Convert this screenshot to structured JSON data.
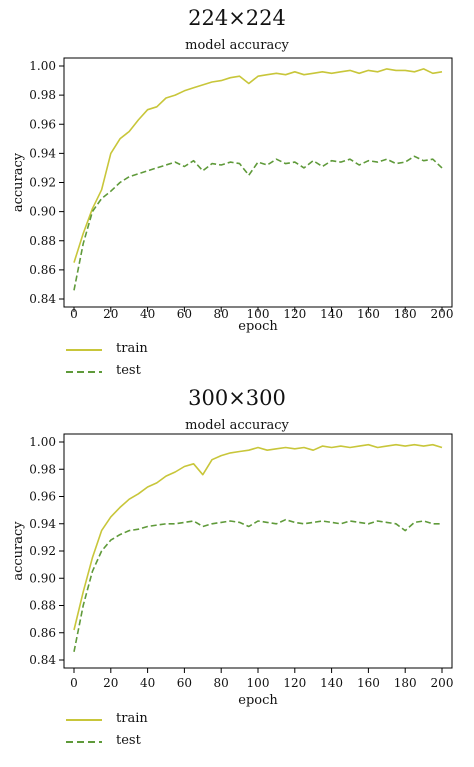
{
  "colors": {
    "train": "#c8c63a",
    "test": "#5f9a3a",
    "axis": "#000000"
  },
  "chart_data": [
    {
      "type": "line",
      "heading": "224×224",
      "title": "model accuracy",
      "xlabel": "epoch",
      "ylabel": "accuracy",
      "xlim": [
        0,
        200
      ],
      "ylim": [
        0.84,
        1.0
      ],
      "xticks": [
        "0",
        "20",
        "40",
        "60",
        "80",
        "100",
        "120",
        "140",
        "160",
        "180",
        "200"
      ],
      "yticks": [
        "0.84",
        "0.86",
        "0.88",
        "0.90",
        "0.92",
        "0.94",
        "0.96",
        "0.98",
        "1.00"
      ],
      "legend": "bottom-left, below plot",
      "x": [
        0,
        5,
        10,
        15,
        20,
        25,
        30,
        35,
        40,
        45,
        50,
        55,
        60,
        65,
        70,
        75,
        80,
        85,
        90,
        95,
        100,
        105,
        110,
        115,
        120,
        125,
        130,
        135,
        140,
        145,
        150,
        155,
        160,
        165,
        170,
        175,
        180,
        185,
        190,
        195,
        200
      ],
      "series": [
        {
          "name": "train",
          "values": [
            0.865,
            0.885,
            0.902,
            0.915,
            0.94,
            0.95,
            0.955,
            0.963,
            0.97,
            0.972,
            0.978,
            0.98,
            0.983,
            0.985,
            0.987,
            0.989,
            0.99,
            0.992,
            0.993,
            0.988,
            0.993,
            0.994,
            0.995,
            0.994,
            0.996,
            0.994,
            0.995,
            0.996,
            0.995,
            0.996,
            0.997,
            0.995,
            0.997,
            0.996,
            0.998,
            0.997,
            0.997,
            0.996,
            0.998,
            0.995,
            0.996
          ]
        },
        {
          "name": "test",
          "values": [
            0.846,
            0.878,
            0.9,
            0.909,
            0.914,
            0.92,
            0.924,
            0.926,
            0.928,
            0.93,
            0.932,
            0.934,
            0.931,
            0.935,
            0.928,
            0.933,
            0.932,
            0.934,
            0.933,
            0.925,
            0.934,
            0.932,
            0.936,
            0.933,
            0.934,
            0.93,
            0.935,
            0.931,
            0.935,
            0.934,
            0.936,
            0.932,
            0.935,
            0.934,
            0.936,
            0.933,
            0.934,
            0.938,
            0.935,
            0.936,
            0.93
          ]
        }
      ]
    },
    {
      "type": "line",
      "heading": "300×300",
      "title": "model accuracy",
      "xlabel": "epoch",
      "ylabel": "accuracy",
      "xlim": [
        0,
        200
      ],
      "ylim": [
        0.84,
        1.0
      ],
      "xticks": [
        "0",
        "20",
        "40",
        "60",
        "80",
        "100",
        "120",
        "140",
        "160",
        "180",
        "200"
      ],
      "yticks": [
        "0.84",
        "0.86",
        "0.88",
        "0.90",
        "0.92",
        "0.94",
        "0.96",
        "0.98",
        "1.00"
      ],
      "legend": "bottom-left, below plot",
      "x": [
        0,
        5,
        10,
        15,
        20,
        25,
        30,
        35,
        40,
        45,
        50,
        55,
        60,
        65,
        70,
        75,
        80,
        85,
        90,
        95,
        100,
        105,
        110,
        115,
        120,
        125,
        130,
        135,
        140,
        145,
        150,
        155,
        160,
        165,
        170,
        175,
        180,
        185,
        190,
        195,
        200
      ],
      "series": [
        {
          "name": "train",
          "values": [
            0.862,
            0.89,
            0.915,
            0.935,
            0.945,
            0.952,
            0.958,
            0.962,
            0.967,
            0.97,
            0.975,
            0.978,
            0.982,
            0.984,
            0.976,
            0.987,
            0.99,
            0.992,
            0.993,
            0.994,
            0.996,
            0.994,
            0.995,
            0.996,
            0.995,
            0.996,
            0.994,
            0.997,
            0.996,
            0.997,
            0.996,
            0.997,
            0.998,
            0.996,
            0.997,
            0.998,
            0.997,
            0.998,
            0.997,
            0.998,
            0.996
          ]
        },
        {
          "name": "test",
          "values": [
            0.846,
            0.88,
            0.905,
            0.92,
            0.928,
            0.932,
            0.935,
            0.936,
            0.938,
            0.939,
            0.94,
            0.94,
            0.941,
            0.942,
            0.938,
            0.94,
            0.941,
            0.942,
            0.941,
            0.938,
            0.942,
            0.941,
            0.94,
            0.943,
            0.941,
            0.94,
            0.941,
            0.942,
            0.941,
            0.94,
            0.942,
            0.941,
            0.94,
            0.942,
            0.941,
            0.94,
            0.935,
            0.941,
            0.942,
            0.94,
            0.94
          ]
        }
      ]
    }
  ]
}
